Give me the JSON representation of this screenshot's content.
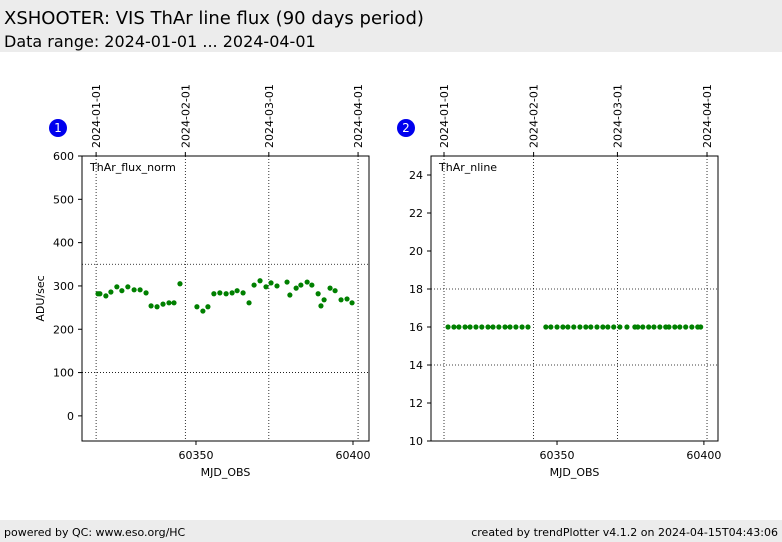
{
  "header": {
    "title": "XSHOOTER: VIS ThAr line flux (90 days period)",
    "subtitle": "Data range: 2024-01-01 ... 2024-04-01"
  },
  "footer": {
    "left": "powered by QC: www.eso.org/HC",
    "right": "created by trendPlotter v4.1.2 on 2024-04-15T04:43:06"
  },
  "chart_data": [
    {
      "type": "scatter",
      "badge": "1",
      "label": "ThAr_flux_norm",
      "xlabel": "MJD_OBS",
      "ylabel": "ADU/sec",
      "color": "green",
      "x": [
        60318.8,
        60319.4,
        60321.3,
        60322.9,
        60324.8,
        60326.4,
        60328.3,
        60330.3,
        60332.2,
        60334.1,
        60335.7,
        60337.6,
        60339.5,
        60341.4,
        60343.0,
        60344.9,
        60350.3,
        60352.2,
        60353.8,
        60355.7,
        60357.6,
        60359.6,
        60361.5,
        60363.1,
        60365.0,
        60366.9,
        60368.5,
        60370.4,
        60372.3,
        60373.9,
        60375.8,
        60379.0,
        60379.9,
        60381.9,
        60383.4,
        60385.4,
        60386.9,
        60388.9,
        60389.8,
        60390.8,
        60392.7,
        60394.3,
        60396.2,
        60398.1,
        60399.7
      ],
      "values": [
        282,
        282,
        277,
        286,
        298,
        289,
        298,
        291,
        291,
        284,
        254,
        252,
        258,
        261,
        261,
        305,
        252,
        242,
        252,
        282,
        284,
        282,
        284,
        289,
        284,
        261,
        302,
        312,
        298,
        307,
        300,
        309,
        279,
        295,
        302,
        309,
        302,
        282,
        254,
        268,
        295,
        289,
        268,
        270,
        261
      ],
      "xlim": [
        60313.7,
        60405.1
      ],
      "xticks": [
        60350,
        60400
      ],
      "x2lim": [
        60305.1,
        60404.8
      ],
      "x2ticks": [
        {
          "value": 60310,
          "label": "2024-01-01"
        },
        {
          "value": 60341,
          "label": "2024-02-01"
        },
        {
          "value": 60370,
          "label": "2024-03-01"
        },
        {
          "value": 60401,
          "label": "2024-04-01"
        }
      ],
      "ylim": [
        -58,
        600
      ],
      "yticks": [
        0,
        100,
        200,
        300,
        400,
        500,
        600
      ],
      "hlines": [
        100,
        350
      ],
      "grid": "x2"
    },
    {
      "type": "scatter",
      "badge": "2",
      "label": "ThAr_nline",
      "xlabel": "MJD_OBS",
      "color": "green",
      "x": [
        60312.9,
        60314.9,
        60316.6,
        60318.7,
        60320.4,
        60322.4,
        60324.4,
        60326.5,
        60328.2,
        60330.2,
        60332.3,
        60334.0,
        60336.0,
        60338.1,
        60340.1,
        60346.2,
        60347.9,
        60350.0,
        60352.0,
        60353.7,
        60355.7,
        60357.8,
        60359.8,
        60361.5,
        60363.6,
        60365.6,
        60367.3,
        60369.3,
        60371.4,
        60373.8,
        60376.5,
        60377.5,
        60379.2,
        60381.2,
        60383.0,
        60385.0,
        60387.0,
        60388.1,
        60390.1,
        60391.8,
        60393.8,
        60395.9,
        60397.9,
        60398.9
      ],
      "values": [
        16,
        16,
        16,
        16,
        16,
        16,
        16,
        16,
        16,
        16,
        16,
        16,
        16,
        16,
        16,
        16,
        16,
        16,
        16,
        16,
        16,
        16,
        16,
        16,
        16,
        16,
        16,
        16,
        16,
        16,
        16,
        16,
        16,
        16,
        16,
        16,
        16,
        16,
        16,
        16,
        16,
        16,
        16,
        16
      ],
      "xlim": [
        60307.1,
        60404.8
      ],
      "xticks": [
        60350,
        60400
      ],
      "x2lim": [
        60305.5,
        60404.8
      ],
      "x2ticks": [
        {
          "value": 60310,
          "label": "2024-01-01"
        },
        {
          "value": 60341,
          "label": "2024-02-01"
        },
        {
          "value": 60370,
          "label": "2024-03-01"
        },
        {
          "value": 60401,
          "label": "2024-04-01"
        }
      ],
      "ylim": [
        10,
        25
      ],
      "yticks": [
        10,
        12,
        14,
        16,
        18,
        20,
        22,
        24
      ],
      "hlines": [
        14,
        18
      ],
      "grid": "x2"
    }
  ]
}
